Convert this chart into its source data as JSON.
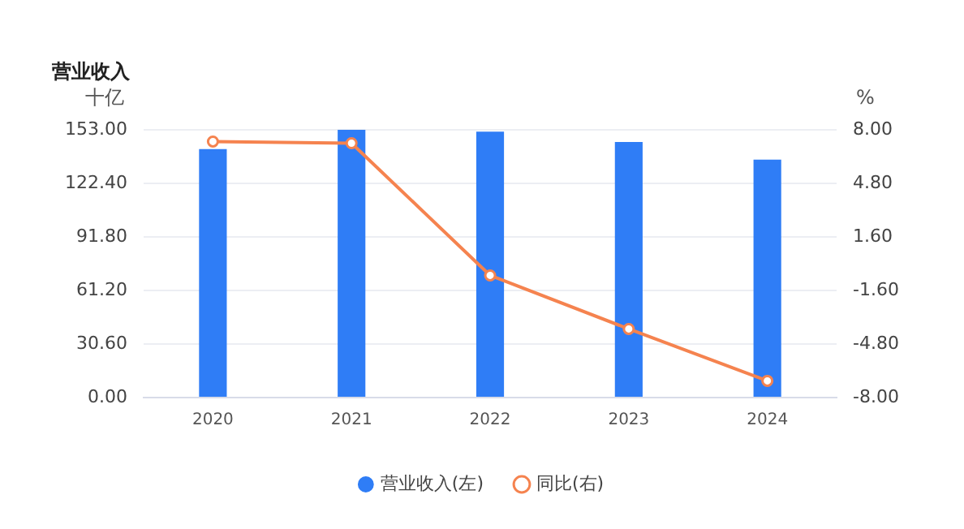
{
  "chart_data": {
    "type": "bar",
    "title": "营业收入",
    "ylabel": "十亿",
    "y2label": "%",
    "categories": [
      "2020",
      "2021",
      "2022",
      "2023",
      "2024"
    ],
    "series": [
      {
        "name": "营业收入(左)",
        "color": "#2f7df6",
        "values": [
          142,
          153,
          152,
          146,
          136
        ]
      },
      {
        "name": "同比(右)",
        "type": "line",
        "axis": "y2",
        "color": "#f5834f",
        "marker": "circle",
        "values": [
          7.3,
          7.2,
          -0.7,
          -3.9,
          -7.0
        ]
      }
    ],
    "ylim": [
      0,
      153
    ],
    "yticks": [
      {
        "value": 0,
        "label": "0.00"
      },
      {
        "value": 30.6,
        "label": "30.60"
      },
      {
        "value": 61.2,
        "label": "61.20"
      },
      {
        "value": 91.8,
        "label": "91.80"
      },
      {
        "value": 122.4,
        "label": "122.40"
      },
      {
        "value": 153,
        "label": "153.00"
      }
    ],
    "y2lim": [
      -8,
      8
    ],
    "y2ticks": [
      {
        "value": -8,
        "label": "-8.00"
      },
      {
        "value": -4.8,
        "label": "-4.80"
      },
      {
        "value": -1.6,
        "label": "-1.60"
      },
      {
        "value": 1.6,
        "label": "1.60"
      },
      {
        "value": 4.8,
        "label": "4.80"
      },
      {
        "value": 8,
        "label": "8.00"
      }
    ],
    "grid": "y",
    "legend": "bottom"
  }
}
